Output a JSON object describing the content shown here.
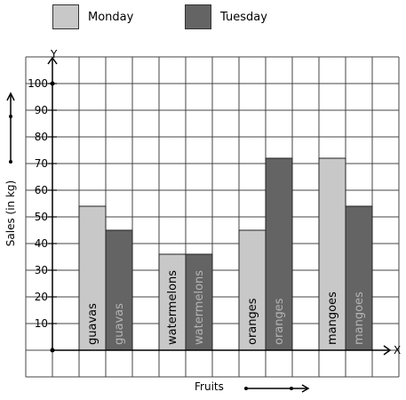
{
  "legend": [
    {
      "label": "Monday",
      "color": "#c8c8c8"
    },
    {
      "label": "Tuesday",
      "color": "#646464"
    }
  ],
  "axes": {
    "y_letter": "Y",
    "x_letter": "X",
    "ylabel": "Sales (in kg)",
    "xlabel": "Fruits"
  },
  "chart_data": {
    "type": "bar",
    "categories": [
      "guavas",
      "watermelons",
      "oranges",
      "mangoes"
    ],
    "series": [
      {
        "name": "Monday",
        "values": [
          54,
          36,
          45,
          72
        ],
        "color": "#c8c8c8",
        "label_color": "#000000"
      },
      {
        "name": "Tuesday",
        "values": [
          45,
          36,
          72,
          54
        ],
        "color": "#646464",
        "label_color": "#b4b4b4"
      }
    ],
    "ylim": [
      0,
      100
    ],
    "yticks": [
      10,
      20,
      30,
      40,
      50,
      60,
      70,
      80,
      90,
      100
    ],
    "ytick_labels": [
      "10",
      "20",
      "30",
      "40",
      "50",
      "60",
      "70",
      "80",
      "90",
      "100"
    ],
    "xlabel": "Fruits",
    "ylabel": "Sales (in kg)",
    "grid": true
  }
}
